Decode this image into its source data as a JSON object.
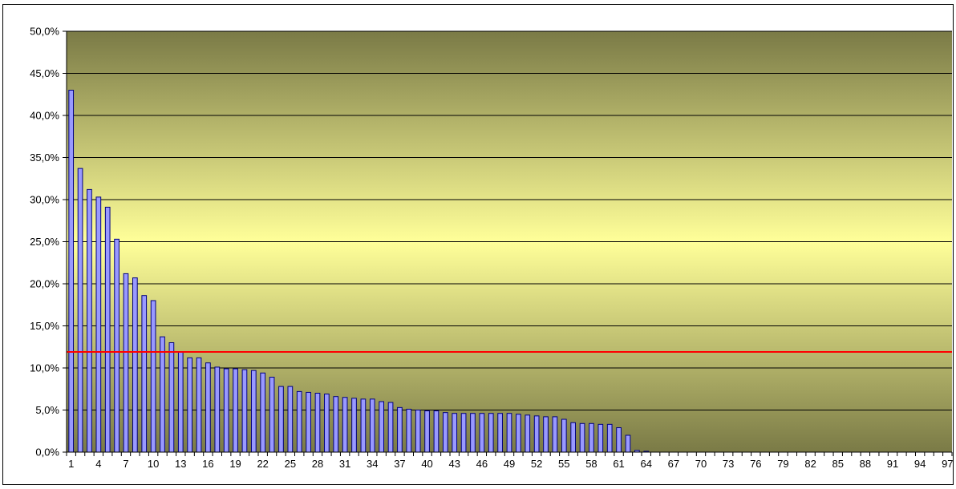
{
  "chart_data": {
    "type": "bar",
    "title": "",
    "xlabel": "",
    "ylabel": "",
    "ylim": [
      0,
      50
    ],
    "y_ticks": [
      0,
      5,
      10,
      15,
      20,
      25,
      30,
      35,
      40,
      45,
      50
    ],
    "y_tick_labels": [
      "0,0%",
      "5,0%",
      "10,0%",
      "15,0%",
      "20,0%",
      "25,0%",
      "30,0%",
      "35,0%",
      "40,0%",
      "45,0%",
      "50,0%"
    ],
    "x_categories_count": 97,
    "x_tick_labels": [
      "1",
      "4",
      "7",
      "10",
      "13",
      "16",
      "19",
      "22",
      "25",
      "28",
      "31",
      "34",
      "37",
      "40",
      "43",
      "46",
      "49",
      "52",
      "55",
      "58",
      "61",
      "64",
      "67",
      "70",
      "73",
      "76",
      "79",
      "82",
      "85",
      "88",
      "91",
      "94",
      "97"
    ],
    "values": [
      43.0,
      33.7,
      31.2,
      30.3,
      29.1,
      25.3,
      21.2,
      20.7,
      18.6,
      18.0,
      13.7,
      13.0,
      11.9,
      11.2,
      11.2,
      10.6,
      10.1,
      9.9,
      9.9,
      9.8,
      9.7,
      9.4,
      8.9,
      7.8,
      7.8,
      7.2,
      7.1,
      7.0,
      6.9,
      6.6,
      6.5,
      6.4,
      6.3,
      6.3,
      6.0,
      5.9,
      5.3,
      5.1,
      5.0,
      4.9,
      4.9,
      4.7,
      4.6,
      4.6,
      4.6,
      4.6,
      4.6,
      4.6,
      4.6,
      4.5,
      4.4,
      4.3,
      4.2,
      4.2,
      3.9,
      3.5,
      3.4,
      3.4,
      3.3,
      3.3,
      2.9,
      2.0,
      0.2,
      0.1,
      0,
      0,
      0,
      0,
      0,
      0,
      0,
      0,
      0,
      0,
      0,
      0,
      0,
      0,
      0,
      0,
      0,
      0,
      0,
      0,
      0,
      0,
      0,
      0,
      0,
      0,
      0,
      0,
      0,
      0,
      0,
      0,
      0
    ],
    "reference_line": {
      "value": 11.9,
      "color": "#ff0000"
    },
    "grid": true,
    "legend": "none",
    "colors": {
      "bar_fill": "#9999ff",
      "bar_stroke": "#000080",
      "gridline": "#000000",
      "plot_bg_edge": "#7a7a46",
      "plot_bg_center": "#ffff99"
    }
  }
}
